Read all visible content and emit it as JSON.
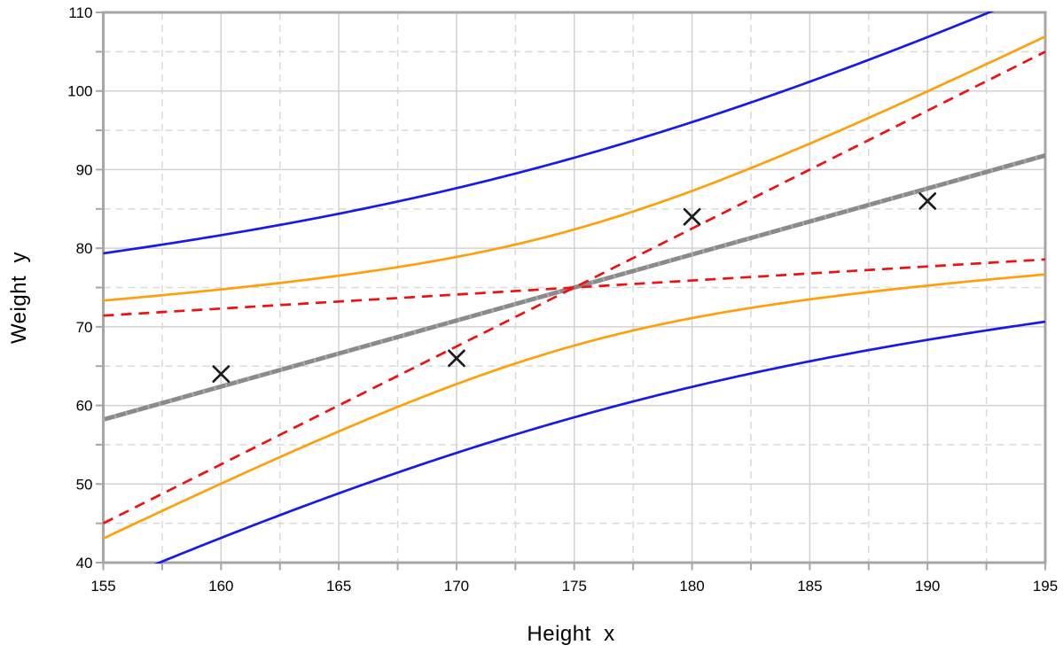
{
  "chart_data": {
    "type": "line",
    "title": "",
    "xlabel": "Height  x",
    "ylabel": "Weight  y",
    "xlim": [
      155,
      195
    ],
    "ylim": [
      40,
      110
    ],
    "x_major_ticks": [
      155,
      160,
      165,
      170,
      175,
      180,
      185,
      190,
      195
    ],
    "x_tick_labels": [
      "155",
      "160",
      "165",
      "170",
      "175",
      "180",
      "185",
      "190",
      "195"
    ],
    "x_minor_step": 2.5,
    "y_major_ticks": [
      40,
      50,
      60,
      70,
      80,
      90,
      100,
      110
    ],
    "y_tick_labels": [
      "40",
      "50",
      "60",
      "70",
      "80",
      "90",
      "100",
      "110"
    ],
    "y_minor_step": 5,
    "grid": "major-solid, minor-dashed",
    "legend": "none",
    "model": {
      "n": 4,
      "x_mean": 175,
      "y_mean": 75,
      "sxx": 500,
      "t_times_s": 14.77,
      "slope": 0.84,
      "intercept": -72,
      "slope_ci": [
        0.1786,
        1.5
      ]
    },
    "series": [
      {
        "name": "prediction-band-upper",
        "type": "band",
        "kind": "prediction",
        "sign": 1,
        "color": "#1a1ae6",
        "width": 2.7,
        "dash": ""
      },
      {
        "name": "prediction-band-lower",
        "type": "band",
        "kind": "prediction",
        "sign": -1,
        "color": "#1a1ae6",
        "width": 2.7,
        "dash": ""
      },
      {
        "name": "confidence-band-upper",
        "type": "band",
        "kind": "confidence",
        "sign": 1,
        "color": "#ffa00a",
        "width": 2.7,
        "dash": ""
      },
      {
        "name": "confidence-band-lower",
        "type": "band",
        "kind": "confidence",
        "sign": -1,
        "color": "#ffa00a",
        "width": 2.7,
        "dash": ""
      },
      {
        "name": "regression-line",
        "type": "line",
        "slope": 0.84,
        "intercept": -72,
        "color": "#8a8a8a",
        "width": 5,
        "dash": "",
        "overlay_dash_color": "#ababab"
      },
      {
        "name": "slope-ci-steep-line",
        "type": "line-through-point",
        "slope": 1.5,
        "point": [
          175,
          75
        ],
        "color": "#ee1111",
        "width": 2.7,
        "dash": "12 8"
      },
      {
        "name": "slope-ci-shallow-line",
        "type": "line-through-point",
        "slope": 0.1786,
        "point": [
          175,
          75
        ],
        "color": "#ee1111",
        "width": 2.7,
        "dash": "12 8"
      },
      {
        "name": "data-points",
        "type": "scatter",
        "marker": "x",
        "color": "#1c1c1c",
        "size": 8.5,
        "width": 2.7,
        "points": [
          [
            160,
            64
          ],
          [
            170,
            66
          ],
          [
            180,
            84
          ],
          [
            190,
            86
          ]
        ]
      }
    ],
    "style": {
      "background": "#ffffff",
      "frame": "#a6a6a6",
      "tick": "#a6a6a6",
      "grid_major": "#d2d2d2",
      "grid_minor": "#d9d9d9",
      "text": "#000000"
    }
  }
}
